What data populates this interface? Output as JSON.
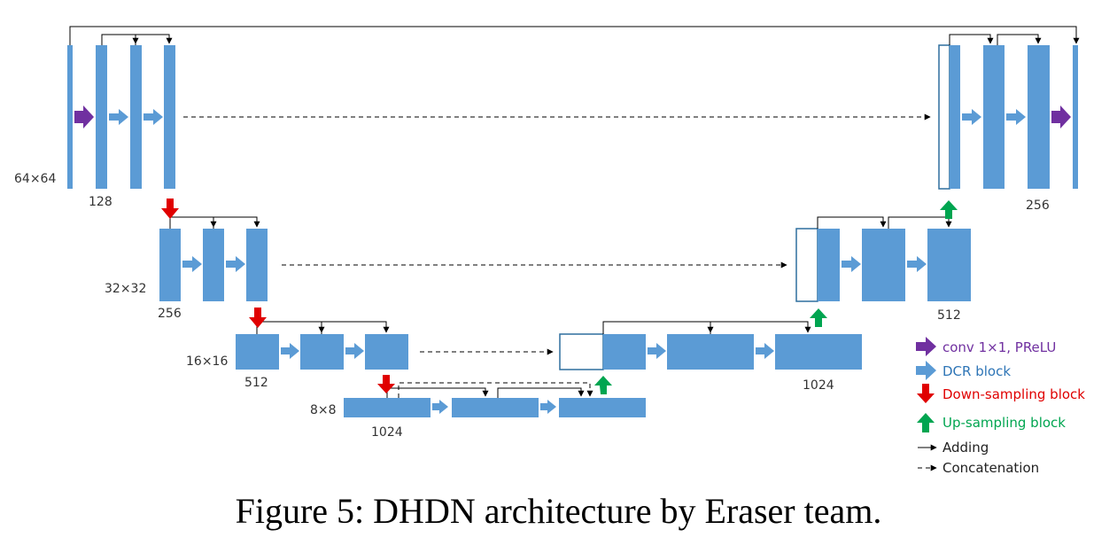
{
  "caption": "Figure 5: DHDN architecture by Eraser team.",
  "colors": {
    "dcr_block": "#5b9bd5",
    "conv_arrow": "#7030a0",
    "down_arrow": "#e00000",
    "up_arrow": "#00a550",
    "concat_border": "#2e6f9e"
  },
  "levels": {
    "res64": "64×64",
    "res32": "32×32",
    "res16": "16×16",
    "res8": "8×8"
  },
  "channels": {
    "enc64": "128",
    "enc32": "256",
    "enc16": "512",
    "enc8": "1024",
    "dec16": "1024",
    "dec32": "512",
    "dec64": "256"
  },
  "legend": {
    "conv": "conv 1×1, PReLU",
    "dcr": "DCR block",
    "down": "Down-sampling block",
    "up": "Up-sampling block",
    "adding": "Adding",
    "concat": "Concatenation"
  }
}
